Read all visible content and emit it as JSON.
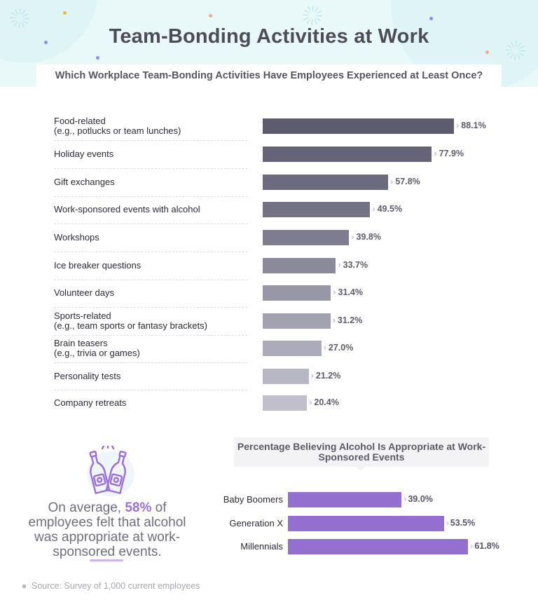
{
  "header": {
    "title": "Team-Bonding Activities at Work",
    "subtitle": "Which Workplace Team-Bonding Activities Have Employees Experienced at Least Once?"
  },
  "chart_data": [
    {
      "type": "bar",
      "orientation": "horizontal",
      "title": "Which Workplace Team-Bonding Activities Have Employees Experienced at Least Once?",
      "categories": [
        "Food-related\n(e.g., potlucks or team lunches)",
        "Holiday events",
        "Gift exchanges",
        "Work-sponsored events with alcohol",
        "Workshops",
        "Ice breaker questions",
        "Volunteer days",
        "Sports-related\n(e.g., team sports or fantasy brackets)",
        "Brain teasers\n(e.g., trivia or games)",
        "Personality tests",
        "Company retreats"
      ],
      "values": [
        88.1,
        77.9,
        57.8,
        49.5,
        39.8,
        33.7,
        31.4,
        31.2,
        27.0,
        21.2,
        20.4
      ],
      "value_labels": [
        "88.1%",
        "77.9%",
        "57.8%",
        "49.5%",
        "39.8%",
        "33.7%",
        "31.4%",
        "31.2%",
        "27.0%",
        "21.2%",
        "20.4%"
      ],
      "colors": [
        "#5d5c6f",
        "#646378",
        "#6b6a7e",
        "#737285",
        "#7e7d8f",
        "#8b8a9b",
        "#9897a7",
        "#a2a1b0",
        "#acabb9",
        "#b7b6c3",
        "#c0bfcb"
      ],
      "xlim": [
        0,
        100
      ],
      "unit": "%"
    },
    {
      "type": "bar",
      "orientation": "horizontal",
      "title": "Percentage Believing Alcohol Is Appropriate at Work-Sponsored Events",
      "categories": [
        "Baby Boomers",
        "Generation X",
        "Millennials"
      ],
      "values": [
        39.0,
        53.5,
        61.8
      ],
      "value_labels": [
        "39.0%",
        "53.5%",
        "61.8%"
      ],
      "color": "#9370cf",
      "xlim": [
        0,
        62
      ],
      "unit": "%"
    }
  ],
  "callout": {
    "prefix": "On average, ",
    "highlight": "58%",
    "suffix": " of employees felt that alcohol was appropriate at work-sponsored events."
  },
  "footer": {
    "source": "Source: Survey of 1,000 current employees"
  },
  "colors": {
    "header_bg": "#e9f8f8",
    "accent_purple": "#9b6fdb"
  }
}
